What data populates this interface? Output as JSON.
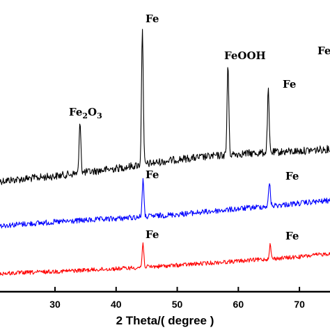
{
  "chart_data": {
    "type": "line",
    "xlabel": "2 Theta/( degree )",
    "xlim": [
      21,
      75
    ],
    "x_ticks": [
      30,
      40,
      50,
      60,
      70
    ],
    "x_tick_labels": [
      "30",
      "40",
      "50",
      "60",
      "70"
    ],
    "grid": false,
    "legend": "none",
    "series": [
      {
        "color": "#000000",
        "baseline": [
          [
            21,
            260
          ],
          [
            30,
            253
          ],
          [
            40,
            242
          ],
          [
            50,
            229
          ],
          [
            60,
            221
          ],
          [
            70,
            217
          ],
          [
            75,
            214
          ]
        ],
        "noise": 11,
        "peaks": [
          {
            "x": 34.1,
            "top": 173,
            "label": "Fe2O3"
          },
          {
            "x": 44.3,
            "top": 38,
            "label": "Fe"
          },
          {
            "x": 58.3,
            "top": 92,
            "label": "FeOOH"
          },
          {
            "x": 64.9,
            "top": 131,
            "label": "Fe"
          }
        ]
      },
      {
        "color": "#0000ff",
        "baseline": [
          [
            21,
            324
          ],
          [
            30,
            319
          ],
          [
            40,
            314
          ],
          [
            50,
            308
          ],
          [
            60,
            300
          ],
          [
            70,
            292
          ],
          [
            75,
            288
          ]
        ],
        "noise": 8,
        "peaks": [
          {
            "x": 44.4,
            "top": 258,
            "label": "Fe"
          },
          {
            "x": 65.1,
            "top": 262,
            "label": "Fe"
          }
        ]
      },
      {
        "color": "#ff0000",
        "baseline": [
          [
            21,
            393
          ],
          [
            30,
            390
          ],
          [
            40,
            386
          ],
          [
            50,
            381
          ],
          [
            60,
            375
          ],
          [
            70,
            369
          ],
          [
            75,
            364
          ]
        ],
        "noise": 6,
        "peaks": [
          {
            "x": 44.4,
            "top": 350,
            "label": "Fe"
          },
          {
            "x": 65.2,
            "top": 352,
            "label": "Fe"
          }
        ]
      }
    ]
  },
  "annotations": {
    "fe2o3_label": "Fe",
    "fe2o3_sub1": "2",
    "fe2o3_mid": "O",
    "fe2o3_sub2": "3",
    "black_fe_1": "Fe",
    "black_feooh": "FeOOH",
    "black_fe_2": "Fe",
    "black_fe_partial": "Fe",
    "blue_fe_1": "Fe",
    "blue_fe_2": "Fe",
    "red_fe_1": "Fe",
    "red_fe_2": "Fe"
  }
}
